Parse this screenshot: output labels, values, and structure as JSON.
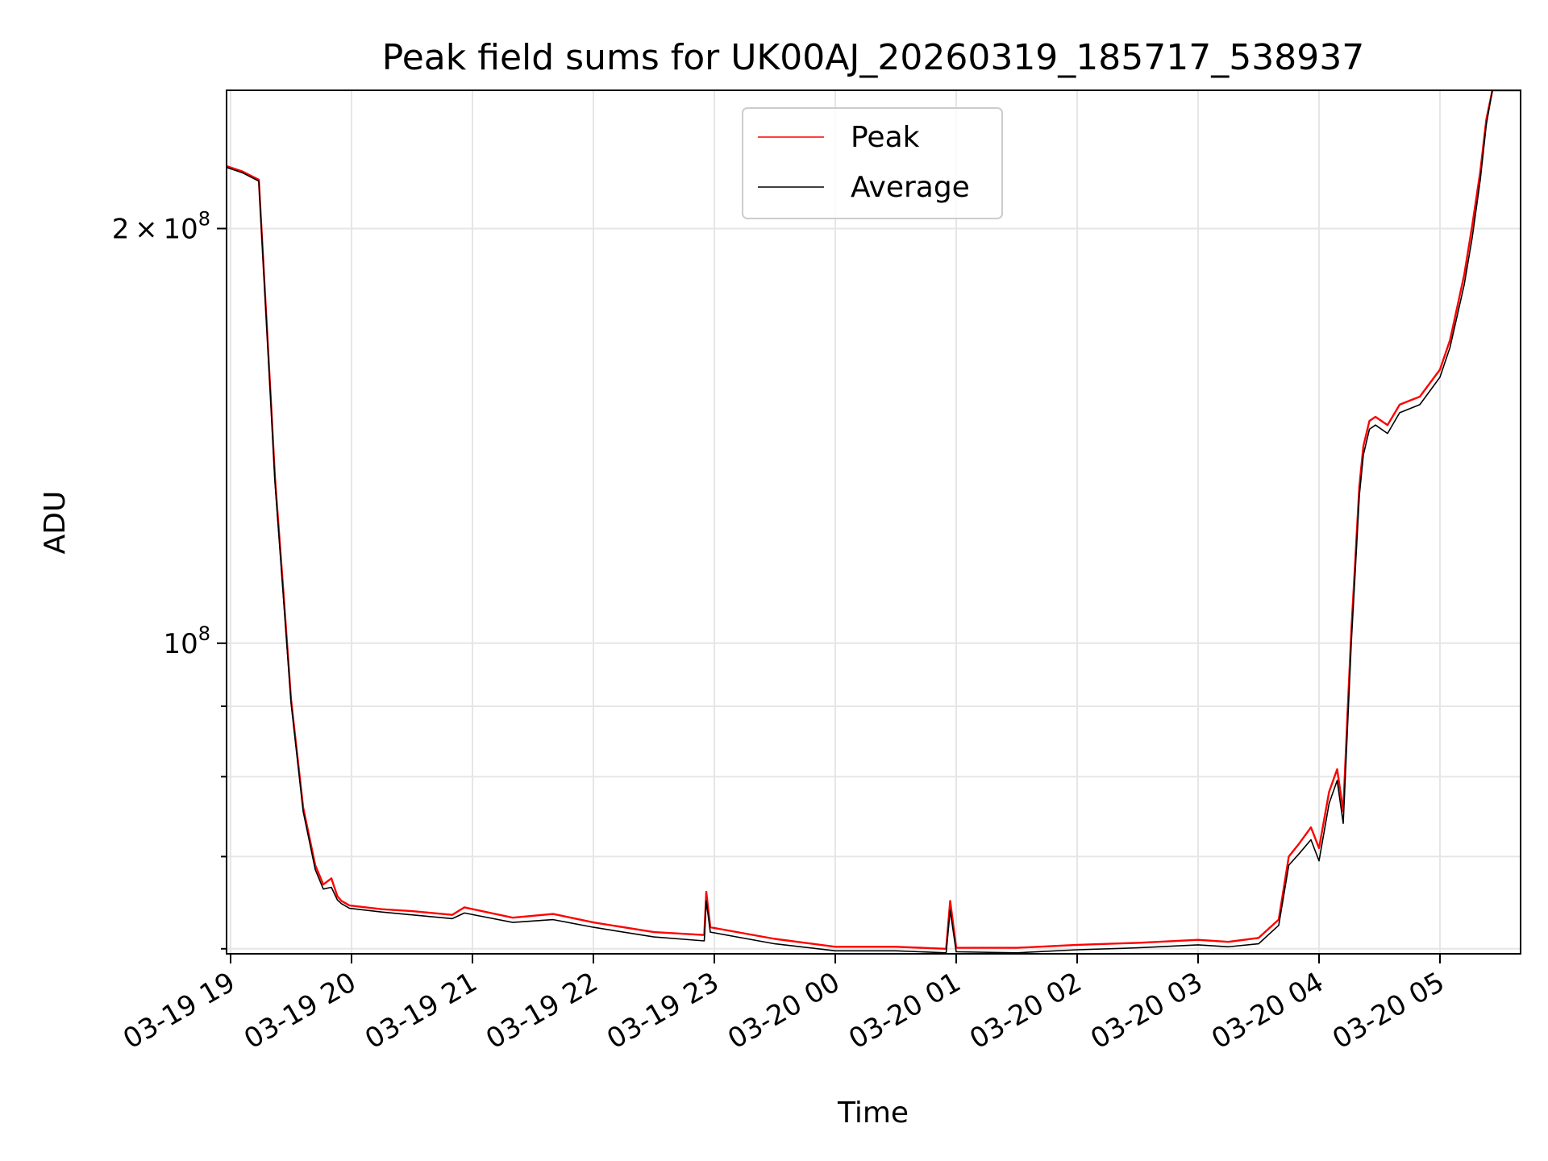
{
  "chart_data": {
    "type": "line",
    "title": "Peak field sums for UK00AJ_20260319_185717_538937",
    "xlabel": "Time",
    "ylabel": "ADU",
    "y_scale": "log",
    "ylim": [
      59500000,
      252000000
    ],
    "xlim": [
      "2026-03-19 18:58",
      "2026-03-20 05:40"
    ],
    "x_ticks": [
      "03-19 19",
      "03-19 20",
      "03-19 21",
      "03-19 22",
      "03-19 23",
      "03-20 00",
      "03-20 01",
      "03-20 02",
      "03-20 03",
      "03-20 04",
      "03-20 05"
    ],
    "x_tick_times": [
      "2026-03-19 19:00",
      "2026-03-19 20:00",
      "2026-03-19 21:00",
      "2026-03-19 22:00",
      "2026-03-19 23:00",
      "2026-03-20 00:00",
      "2026-03-20 01:00",
      "2026-03-20 02:00",
      "2026-03-20 03:00",
      "2026-03-20 04:00",
      "2026-03-20 05:00"
    ],
    "y_tick_labels": [
      {
        "value": 200000000,
        "mantissa": "2",
        "exponent": "8"
      },
      {
        "value": 100000000,
        "mantissa": "",
        "exponent": "8"
      }
    ],
    "y_minor_ticks": [
      60000000,
      70000000,
      80000000,
      90000000
    ],
    "grid": true,
    "legend": "upper center",
    "series": [
      {
        "name": "Peak",
        "color": "#ff0000",
        "x": [
          "2026-03-19 18:58",
          "2026-03-19 19:06",
          "2026-03-19 19:14",
          "2026-03-19 19:20",
          "2026-03-19 19:22",
          "2026-03-19 19:26",
          "2026-03-19 19:30",
          "2026-03-19 19:36",
          "2026-03-19 19:42",
          "2026-03-19 19:46",
          "2026-03-19 19:50",
          "2026-03-19 19:53",
          "2026-03-19 19:55",
          "2026-03-19 19:59",
          "2026-03-19 20:15",
          "2026-03-19 20:30",
          "2026-03-19 20:50",
          "2026-03-19 20:56",
          "2026-03-19 21:20",
          "2026-03-19 21:40",
          "2026-03-19 22:00",
          "2026-03-19 22:30",
          "2026-03-19 22:55",
          "2026-03-19 22:56",
          "2026-03-19 22:58",
          "2026-03-19 23:30",
          "2026-03-20 00:00",
          "2026-03-20 00:30",
          "2026-03-20 00:55",
          "2026-03-20 00:57",
          "2026-03-20 01:00",
          "2026-03-20 01:30",
          "2026-03-20 02:00",
          "2026-03-20 02:30",
          "2026-03-20 03:00",
          "2026-03-20 03:15",
          "2026-03-20 03:30",
          "2026-03-20 03:40",
          "2026-03-20 03:45",
          "2026-03-20 03:50",
          "2026-03-20 03:56",
          "2026-03-20 04:00",
          "2026-03-20 04:05",
          "2026-03-20 04:09",
          "2026-03-20 04:12",
          "2026-03-20 04:14",
          "2026-03-20 04:16",
          "2026-03-20 04:18",
          "2026-03-20 04:20",
          "2026-03-20 04:22",
          "2026-03-20 04:25",
          "2026-03-20 04:28",
          "2026-03-20 04:34",
          "2026-03-20 04:40",
          "2026-03-20 04:45",
          "2026-03-20 04:50",
          "2026-03-20 05:00",
          "2026-03-20 05:05",
          "2026-03-20 05:12",
          "2026-03-20 05:16",
          "2026-03-20 05:20",
          "2026-03-20 05:23",
          "2026-03-20 05:26",
          "2026-03-20 05:30",
          "2026-03-20 05:34",
          "2026-03-20 05:40"
        ],
        "y": [
          222000000,
          220000000,
          217000000,
          150000000,
          132000000,
          110000000,
          91000000,
          76000000,
          69000000,
          66800000,
          67500000,
          65500000,
          65000000,
          64500000,
          64100000,
          63900000,
          63500000,
          64300000,
          63200000,
          63600000,
          62700000,
          61700000,
          61400000,
          66000000,
          62200000,
          61000000,
          60200000,
          60200000,
          60000000,
          65000000,
          60100000,
          60100000,
          60400000,
          60600000,
          60900000,
          60700000,
          61100000,
          63000000,
          70000000,
          71500000,
          73500000,
          71000000,
          78000000,
          81000000,
          75500000,
          88000000,
          102000000,
          115000000,
          130000000,
          139000000,
          145000000,
          146000000,
          144000000,
          149000000,
          150000000,
          151000000,
          158000000,
          166000000,
          185000000,
          201000000,
          220000000,
          240000000,
          252000000,
          252000000,
          252000000,
          252000000
        ]
      },
      {
        "name": "Average",
        "color": "#000000",
        "x": [
          "2026-03-19 18:58",
          "2026-03-19 19:06",
          "2026-03-19 19:14",
          "2026-03-19 19:20",
          "2026-03-19 19:22",
          "2026-03-19 19:26",
          "2026-03-19 19:30",
          "2026-03-19 19:36",
          "2026-03-19 19:42",
          "2026-03-19 19:46",
          "2026-03-19 19:50",
          "2026-03-19 19:53",
          "2026-03-19 19:55",
          "2026-03-19 19:59",
          "2026-03-19 20:15",
          "2026-03-19 20:30",
          "2026-03-19 20:50",
          "2026-03-19 20:56",
          "2026-03-19 21:20",
          "2026-03-19 21:40",
          "2026-03-19 22:00",
          "2026-03-19 22:30",
          "2026-03-19 22:55",
          "2026-03-19 22:56",
          "2026-03-19 22:58",
          "2026-03-19 23:30",
          "2026-03-20 00:00",
          "2026-03-20 00:30",
          "2026-03-20 00:55",
          "2026-03-20 00:57",
          "2026-03-20 01:00",
          "2026-03-20 01:30",
          "2026-03-20 02:00",
          "2026-03-20 02:30",
          "2026-03-20 03:00",
          "2026-03-20 03:15",
          "2026-03-20 03:30",
          "2026-03-20 03:40",
          "2026-03-20 03:45",
          "2026-03-20 03:50",
          "2026-03-20 03:56",
          "2026-03-20 04:00",
          "2026-03-20 04:05",
          "2026-03-20 04:09",
          "2026-03-20 04:12",
          "2026-03-20 04:14",
          "2026-03-20 04:16",
          "2026-03-20 04:18",
          "2026-03-20 04:20",
          "2026-03-20 04:22",
          "2026-03-20 04:25",
          "2026-03-20 04:28",
          "2026-03-20 04:34",
          "2026-03-20 04:40",
          "2026-03-20 04:45",
          "2026-03-20 04:50",
          "2026-03-20 05:00",
          "2026-03-20 05:05",
          "2026-03-20 05:12",
          "2026-03-20 05:16",
          "2026-03-20 05:20",
          "2026-03-20 05:23",
          "2026-03-20 05:26",
          "2026-03-20 05:30",
          "2026-03-20 05:34",
          "2026-03-20 05:40"
        ],
        "y": [
          221500000,
          219500000,
          216500000,
          149000000,
          131000000,
          109000000,
          90500000,
          75500000,
          68500000,
          66300000,
          66500000,
          65100000,
          64700000,
          64200000,
          63800000,
          63500000,
          63100000,
          63700000,
          62700000,
          63000000,
          62200000,
          61200000,
          60800000,
          65000000,
          61700000,
          60500000,
          59800000,
          59800000,
          59600000,
          64000000,
          59700000,
          59600000,
          59900000,
          60100000,
          60400000,
          60200000,
          60500000,
          62400000,
          69000000,
          70300000,
          72000000,
          69500000,
          76500000,
          79500000,
          74000000,
          86000000,
          100000000,
          113000000,
          128000000,
          137000000,
          143000000,
          144000000,
          142000000,
          147000000,
          148000000,
          149000000,
          156000000,
          164000000,
          182000000,
          197000000,
          217000000,
          238000000,
          252000000,
          252000000,
          252000000,
          252000000
        ]
      }
    ]
  }
}
